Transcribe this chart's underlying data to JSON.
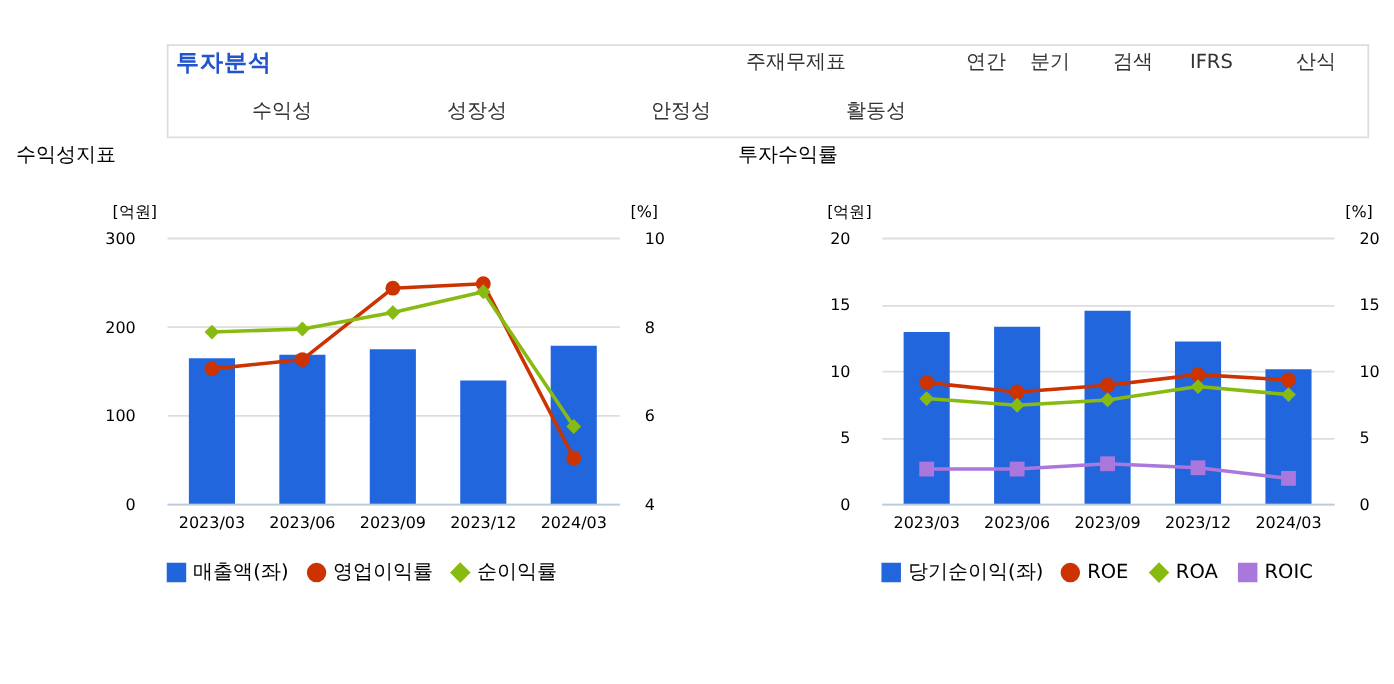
{
  "chart_data": [
    {
      "type": "other",
      "title": "투자분석",
      "annotations": [
        "주재무제표",
        "연간",
        "분기",
        "검색",
        "IFRS",
        "산식",
        "수익성",
        "성장성",
        "안정성",
        "활동성"
      ]
    },
    {
      "type": "bar",
      "title": "수익성지표",
      "categories": [
        "2023/03",
        "2023/06",
        "2023/09",
        "2023/12",
        "2024/03"
      ],
      "ylabel": "[억원]",
      "y2label": "[%]",
      "ylim": [
        0,
        300
      ],
      "yticks": [
        0,
        100,
        200,
        300
      ],
      "y2lim": [
        4,
        10
      ],
      "y2ticks": [
        4,
        6,
        8,
        10
      ],
      "grid": "y",
      "legend": "bottom",
      "series": [
        {
          "name": "매출액(좌)",
          "type": "bar",
          "color": "#2266dd",
          "values": [
            164,
            168,
            174,
            139,
            178
          ]
        },
        {
          "name": "영업이익률",
          "type": "line",
          "axis": "y2",
          "marker": "circle",
          "color": "#cc3300",
          "values": [
            7.04,
            7.25,
            8.86,
            8.96,
            5.03
          ]
        },
        {
          "name": "순이익률",
          "type": "line",
          "axis": "y2",
          "marker": "diamond",
          "color": "#88bb11",
          "values": [
            7.87,
            7.94,
            8.31,
            8.78,
            5.74
          ]
        }
      ]
    },
    {
      "type": "bar",
      "title": "투자수익률",
      "categories": [
        "2023/03",
        "2023/06",
        "2023/09",
        "2023/12",
        "2024/03"
      ],
      "ylabel": "[억원]",
      "y2label": "[%]",
      "ylim": [
        0,
        20
      ],
      "yticks": [
        0,
        5,
        10,
        15,
        20
      ],
      "y2lim": [
        0,
        20
      ],
      "y2ticks": [
        0,
        5,
        10,
        15,
        20
      ],
      "grid": "y",
      "legend": "bottom",
      "series": [
        {
          "name": "당기순이익(좌)",
          "type": "bar",
          "color": "#2266dd",
          "values": [
            12.9,
            13.3,
            14.5,
            12.2,
            10.1
          ]
        },
        {
          "name": "ROE",
          "type": "line",
          "axis": "y2",
          "marker": "circle",
          "color": "#cc3300",
          "values": [
            9.1,
            8.4,
            8.9,
            9.7,
            9.3
          ]
        },
        {
          "name": "ROA",
          "type": "line",
          "axis": "y2",
          "marker": "diamond",
          "color": "#88bb11",
          "values": [
            7.9,
            7.4,
            7.8,
            8.8,
            8.2
          ]
        },
        {
          "name": "ROIC",
          "type": "line",
          "axis": "y2",
          "marker": "square",
          "color": "#aa77dd",
          "values": [
            2.6,
            2.6,
            3.0,
            2.7,
            1.9
          ]
        }
      ]
    }
  ]
}
